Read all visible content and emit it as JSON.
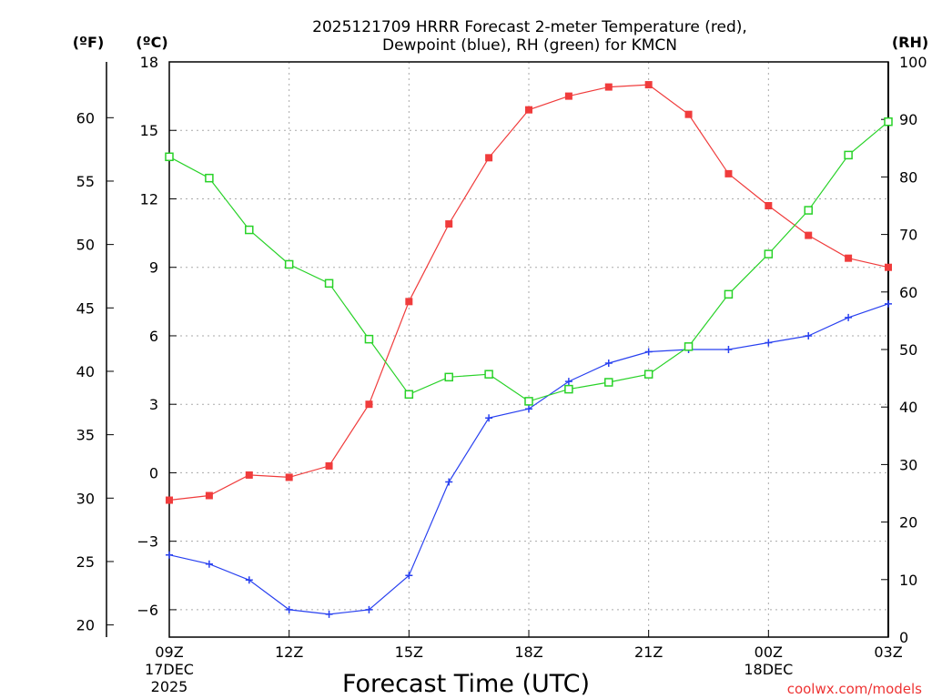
{
  "chart_data": {
    "type": "line",
    "title_line1": "2025121709 HRRR Forecast 2-meter Temperature (red),",
    "title_line2": "Dewpoint (blue), RH (green) for KMCN",
    "xlabel": "Forecast Time (UTC)",
    "credit": "coolwx.com/models",
    "axis_unit_f": "(ºF)",
    "axis_unit_c": "(ºC)",
    "axis_unit_rh": "(RH)",
    "x_hours": [
      0,
      1,
      2,
      3,
      4,
      5,
      6,
      7,
      8,
      9,
      10,
      11,
      12,
      13,
      14,
      15,
      16,
      17,
      18
    ],
    "x_range": [
      0,
      18
    ],
    "x_ticks": [
      {
        "hour": 0,
        "label": "09Z",
        "sub1": "17DEC",
        "sub2": "2025"
      },
      {
        "hour": 3,
        "label": "12Z",
        "sub1": "",
        "sub2": ""
      },
      {
        "hour": 6,
        "label": "15Z",
        "sub1": "",
        "sub2": ""
      },
      {
        "hour": 9,
        "label": "18Z",
        "sub1": "",
        "sub2": ""
      },
      {
        "hour": 12,
        "label": "21Z",
        "sub1": "",
        "sub2": ""
      },
      {
        "hour": 15,
        "label": "00Z",
        "sub1": "18DEC",
        "sub2": ""
      },
      {
        "hour": 18,
        "label": "03Z",
        "sub1": "",
        "sub2": ""
      }
    ],
    "c_range": [
      -7.2,
      18
    ],
    "c_ticks": [
      18,
      15,
      12,
      9,
      6,
      3,
      0,
      -3,
      -6
    ],
    "c_tick_labels": [
      "18",
      "15",
      "12",
      "9",
      "6",
      "3",
      "0",
      "−3",
      "−6"
    ],
    "f_ticks": [
      60,
      55,
      50,
      45,
      40,
      35,
      30,
      25,
      20
    ],
    "rh_range": [
      0,
      100
    ],
    "rh_ticks": [
      100,
      90,
      80,
      70,
      60,
      50,
      40,
      30,
      20,
      10,
      0
    ],
    "series": [
      {
        "name": "Temperature",
        "color": "#f03c3c",
        "marker": "filled-square",
        "values": [
          -1.2,
          -1.0,
          -0.1,
          -0.2,
          0.3,
          3.0,
          7.5,
          10.9,
          13.8,
          15.9,
          16.5,
          16.9,
          17.0,
          15.7,
          13.1,
          11.7,
          10.4,
          9.4,
          9.0
        ]
      },
      {
        "name": "Dewpoint",
        "color": "#2840f0",
        "marker": "plus",
        "values": [
          -3.6,
          -4.0,
          -4.7,
          -6.0,
          -6.2,
          -6.0,
          -4.5,
          -0.4,
          2.4,
          2.8,
          4.0,
          4.8,
          5.3,
          5.4,
          5.4,
          5.7,
          6.0,
          6.8,
          7.4
        ]
      },
      {
        "name": "RH",
        "color": "#28d228",
        "marker": "open-square",
        "axis": "rh",
        "values": [
          83.5,
          79.8,
          70.8,
          64.8,
          61.5,
          51.8,
          42.2,
          45.2,
          45.7,
          41.0,
          43.1,
          44.3,
          45.7,
          50.5,
          59.6,
          66.6,
          74.2,
          83.8,
          89.6
        ]
      }
    ]
  }
}
